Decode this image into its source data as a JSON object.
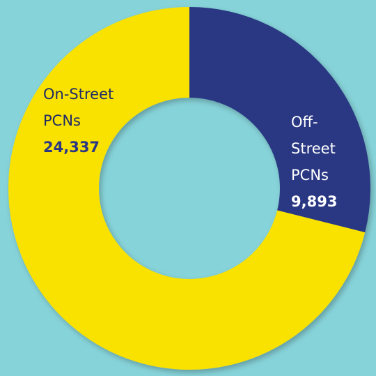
{
  "chart_data": {
    "type": "donut",
    "categories": [
      "Off-Street PCNs",
      "On-Street PCNs"
    ],
    "values": [
      9893,
      24337
    ],
    "value_labels": [
      "9,893",
      "24,337"
    ],
    "colors": [
      "#2b3784",
      "#f9e100"
    ]
  }
}
